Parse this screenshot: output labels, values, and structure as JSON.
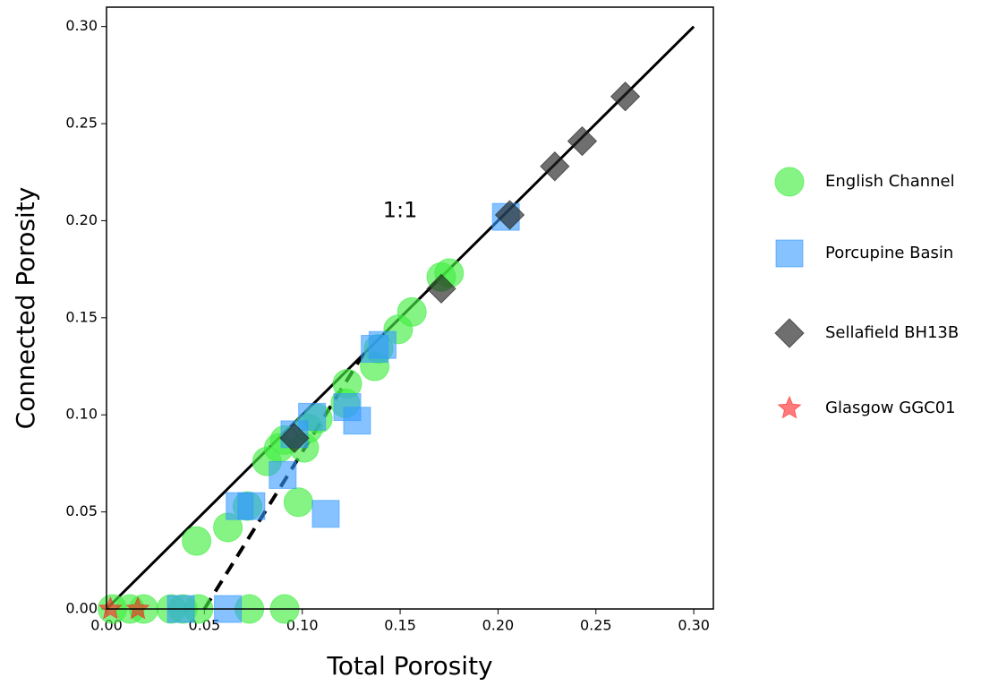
{
  "chart_data": {
    "type": "scatter",
    "x_label": "Total Porosity",
    "y_label": "Connected Porosity",
    "xlim": [
      0,
      0.31
    ],
    "ylim": [
      0,
      0.31
    ],
    "xticks": [
      {
        "value": 0,
        "label": "0.00"
      },
      0.05,
      {
        "value": 0.1,
        "label": "0.10"
      },
      0.15,
      {
        "value": 0.2,
        "label": "0.20"
      },
      0.25,
      {
        "value": 0.3,
        "label": "0.30"
      }
    ],
    "yticks": [
      {
        "value": 0,
        "label": "0.00"
      },
      0.05,
      {
        "value": 0.1,
        "label": "0.10"
      },
      0.15,
      {
        "value": 0.2,
        "label": "0.20"
      },
      0.25,
      {
        "value": 0.3,
        "label": "0.30"
      }
    ],
    "legend": "outside right",
    "annotation": {
      "text": "1:1",
      "x": 0.15,
      "y": 0.205
    },
    "lines": [
      {
        "style": "solid",
        "color": "#000000",
        "x": [
          0,
          0.3
        ],
        "y": [
          0,
          0.3
        ]
      },
      {
        "style": "dashed",
        "color": "#000000",
        "x": [
          0.05,
          0.131
        ],
        "y": [
          0,
          0.131
        ]
      }
    ],
    "series": [
      {
        "name": "English Channel",
        "marker": "circle",
        "color": "#44ee44",
        "alpha": 0.65,
        "x": [
          0.046,
          0.062,
          0.072,
          0.082,
          0.088,
          0.091,
          0.101,
          0.098,
          0.103,
          0.108,
          0.123,
          0.122,
          0.137,
          0.149,
          0.156,
          0.171,
          0.175,
          0.139,
          0.003,
          0.012,
          0.019,
          0.033,
          0.039,
          0.047,
          0.073,
          0.091
        ],
        "y": [
          0.035,
          0.042,
          0.053,
          0.076,
          0.083,
          0.087,
          0.083,
          0.055,
          0.093,
          0.098,
          0.116,
          0.106,
          0.125,
          0.144,
          0.153,
          0.171,
          0.173,
          0.134,
          0,
          0,
          0,
          0,
          0,
          0,
          0,
          0
        ]
      },
      {
        "name": "Porcupine Basin",
        "marker": "square",
        "color": "#3399ff",
        "alpha": 0.6,
        "x": [
          0.038,
          0.062,
          0.068,
          0.074,
          0.09,
          0.096,
          0.105,
          0.123,
          0.128,
          0.112,
          0.137,
          0.141,
          0.204
        ],
        "y": [
          0,
          0,
          0.053,
          0.053,
          0.069,
          0.09,
          0.099,
          0.104,
          0.097,
          0.049,
          0.134,
          0.136,
          0.202
        ]
      },
      {
        "name": "Sellafield BH13B",
        "marker": "diamond",
        "color": "#222222",
        "alpha": 0.65,
        "x": [
          0.096,
          0.171,
          0.206,
          0.229,
          0.243,
          0.265
        ],
        "y": [
          0.088,
          0.165,
          0.203,
          0.228,
          0.241,
          0.264
        ]
      },
      {
        "name": "Glasgow GGC01",
        "marker": "star",
        "color": "#ff2222",
        "alpha": 0.6,
        "x": [
          0.002,
          0.016
        ],
        "y": [
          0,
          0
        ]
      }
    ]
  }
}
